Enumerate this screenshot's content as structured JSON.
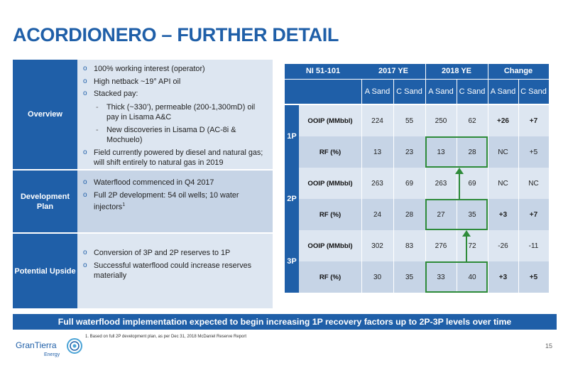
{
  "title": "ACORDIONERO – FURTHER DETAIL",
  "left_panel": {
    "overview": {
      "label": "Overview",
      "bullets": [
        "100% working interest (operator)",
        "High netback ~19° API oil",
        "Stacked pay:",
        "Field currently powered by diesel and natural gas; will shift entirely to natural gas in 2019"
      ],
      "sub_bullets": [
        "Thick (~330’), permeable (200-1,300mD) oil pay in Lisama A&C",
        "New discoveries in Lisama D (AC-8i & Mochuelo)"
      ]
    },
    "development": {
      "label": "Development Plan",
      "bullets": [
        "Waterflood commenced in Q4 2017",
        "Full 2P development: 54 oil wells; 10 water injectors"
      ],
      "footnote_marker": "1"
    },
    "upside": {
      "label": "Potential Upside",
      "bullets": [
        "Conversion of 3P and 2P reserves to 1P",
        "Successful waterflood could increase reserves materially"
      ]
    }
  },
  "table": {
    "header": [
      "NI 51-101",
      "2017 YE",
      "2018 YE",
      "Change"
    ],
    "subheader": [
      "A Sand",
      "C Sand",
      "A Sand",
      "C Sand",
      "A Sand",
      "C Sand"
    ],
    "groups": [
      {
        "level": "1P",
        "rows": [
          {
            "metric": "OOIP (MMbbl)",
            "values": [
              "224",
              "55",
              "250",
              "62",
              "+26",
              "+7"
            ]
          },
          {
            "metric": "RF (%)",
            "values": [
              "13",
              "23",
              "13",
              "28",
              "NC",
              "+5"
            ]
          }
        ]
      },
      {
        "level": "2P",
        "rows": [
          {
            "metric": "OOIP (MMbbl)",
            "values": [
              "263",
              "69",
              "263",
              "69",
              "NC",
              "NC"
            ]
          },
          {
            "metric": "RF (%)",
            "values": [
              "24",
              "28",
              "27",
              "35",
              "+3",
              "+7"
            ]
          }
        ]
      },
      {
        "level": "3P",
        "rows": [
          {
            "metric": "OOIP (MMbbl)",
            "values": [
              "302",
              "83",
              "276",
              "72",
              "-26",
              "-11"
            ]
          },
          {
            "metric": "RF (%)",
            "values": [
              "30",
              "35",
              "33",
              "40",
              "+3",
              "+5"
            ]
          }
        ]
      }
    ]
  },
  "banner": "Full waterflood implementation expected to begin increasing 1P recovery factors up to 2P-3P levels over time",
  "footer": {
    "logo_text": "GranTierra",
    "logo_sub": "Energy",
    "footnote": "1. Based on full 2P development plan, as per Dec 31, 2018 McDaniel Reserve Report",
    "page": "15"
  },
  "colors": {
    "brand_blue": "#1f5fa8",
    "light_row": "#dde6f1",
    "mid_row": "#c6d4e6",
    "highlight_green": "#2e8b3a"
  }
}
